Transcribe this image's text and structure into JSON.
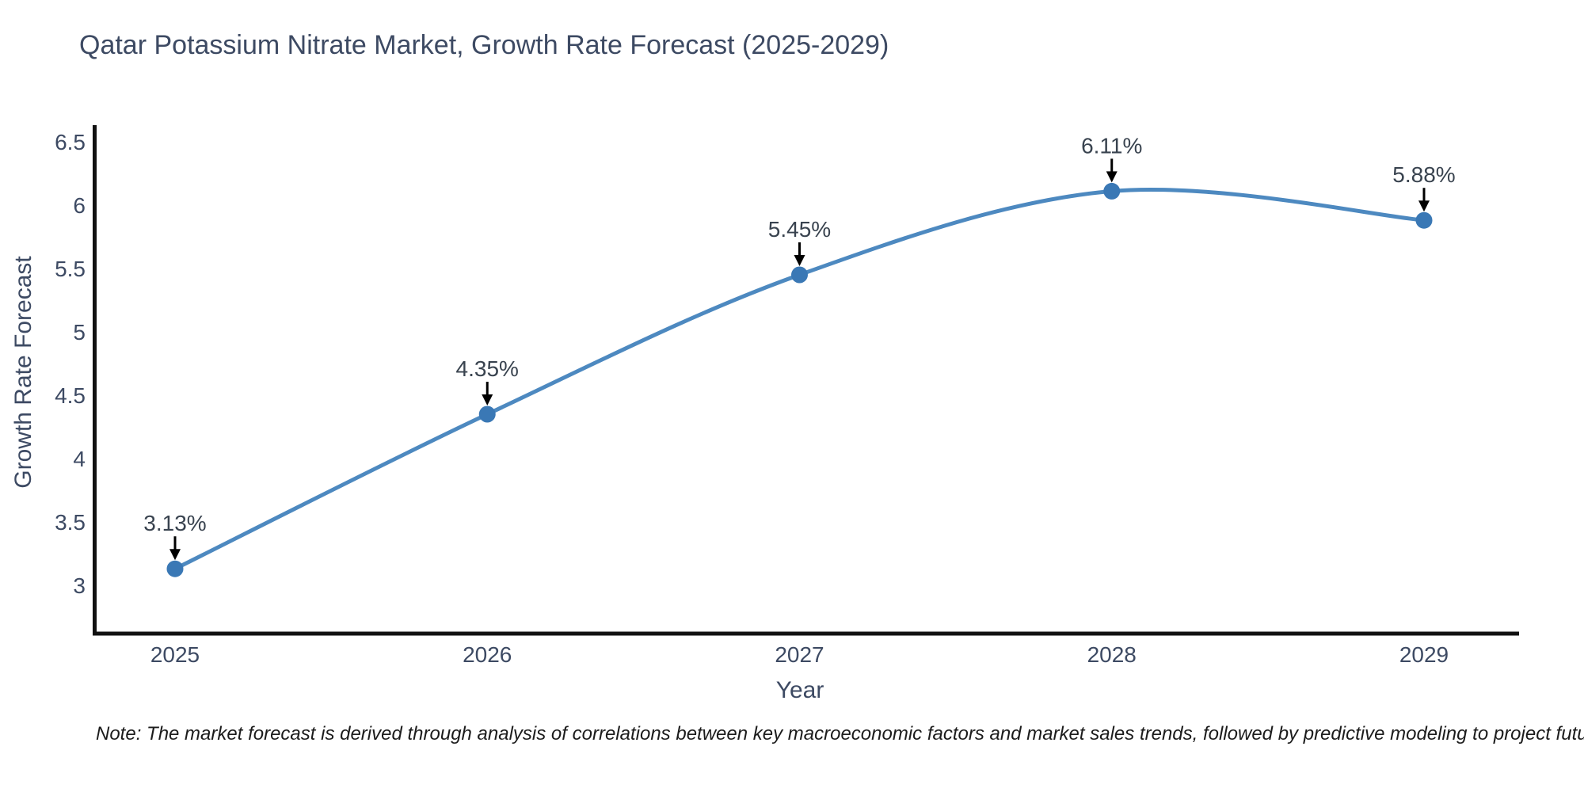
{
  "chart": {
    "title": "Qatar Potassium Nitrate Market, Growth Rate Forecast (2025-2029)",
    "xlabel": "Year",
    "ylabel": "Growth Rate Forecast"
  },
  "chart_data": {
    "type": "line",
    "line_shape": "spline",
    "x": [
      2025,
      2026,
      2027,
      2028,
      2029
    ],
    "values": [
      3.13,
      4.35,
      5.45,
      6.11,
      5.88
    ],
    "point_labels": [
      "3.13%",
      "4.35%",
      "5.45%",
      "6.11%",
      "5.88%"
    ],
    "xtick_labels": [
      "2025",
      "2026",
      "2027",
      "2028",
      "2029"
    ],
    "yticks": [
      3,
      3.5,
      4,
      4.5,
      5,
      5.5,
      6,
      6.5
    ],
    "ytick_labels": [
      "3",
      "3.5",
      "4",
      "4.5",
      "5",
      "5.5",
      "6",
      "6.5"
    ],
    "title": "Qatar Potassium Nitrate Market, Growth Rate Forecast (2025-2029)",
    "xlabel": "Year",
    "ylabel": "Growth Rate Forecast",
    "xlim": [
      2024.74,
      2029.3
    ],
    "ylim": [
      2.62,
      6.63
    ],
    "grid": false,
    "legend": "none",
    "colors": {
      "line": "#4d89c0",
      "marker": "#3a78b5",
      "axis": "#111111",
      "text": "#3d4a63",
      "annotation_text": "#39434f",
      "annotation_arrow": "#000000",
      "background": "#ffffff"
    }
  },
  "note": {
    "text": "Note: The market forecast is derived through analysis of correlations between key macroeconomic factors and market sales trends, followed by predictive modeling to project future sales"
  }
}
